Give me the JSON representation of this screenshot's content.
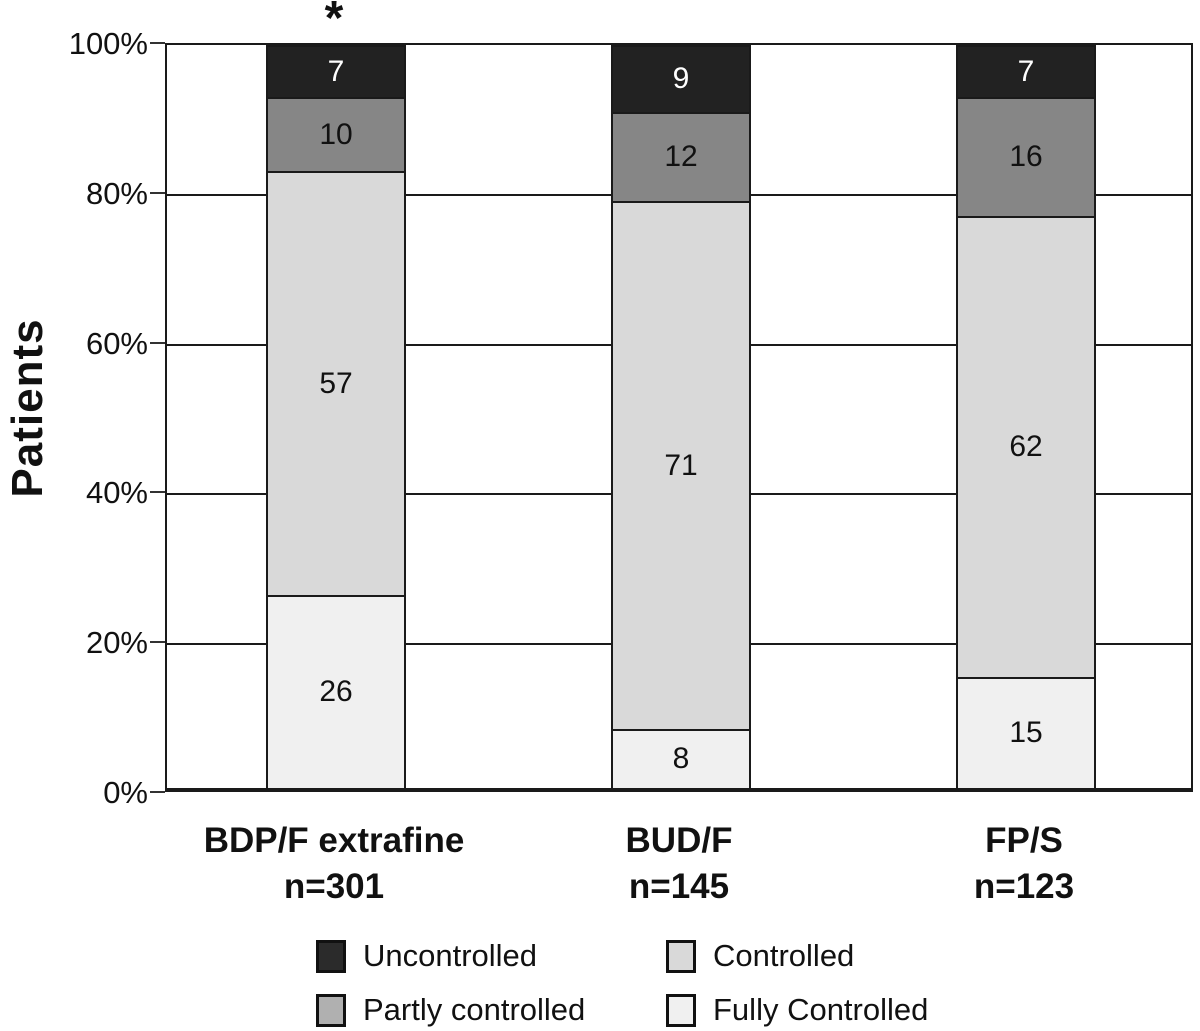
{
  "chart_data": {
    "type": "bar",
    "subtype": "stacked-100-percent",
    "title": "",
    "ylabel": "Patients",
    "xlabel": "",
    "ylim": [
      0,
      100
    ],
    "y_ticks": [
      "0%",
      "20%",
      "40%",
      "60%",
      "80%",
      "100%"
    ],
    "y_tick_values": [
      0,
      20,
      40,
      60,
      80,
      100
    ],
    "grid": "horizontal",
    "categories": [
      {
        "label": "BDP/F extrafine",
        "n_label": "n=301",
        "annotation": "*"
      },
      {
        "label": "BUD/F",
        "n_label": "n=145",
        "annotation": ""
      },
      {
        "label": "FP/S",
        "n_label": "n=123",
        "annotation": ""
      }
    ],
    "series": [
      {
        "name": "Fully Controlled",
        "color": "#f0f0f0",
        "text_color": "#111111",
        "values": [
          26,
          8,
          15
        ]
      },
      {
        "name": "Controlled",
        "color": "#d9d9d9",
        "text_color": "#111111",
        "values": [
          57,
          71,
          62
        ]
      },
      {
        "name": "Partly controlled",
        "color": "#868686",
        "text_color": "#111111",
        "values": [
          10,
          12,
          16
        ]
      },
      {
        "name": "Uncontrolled",
        "color": "#222222",
        "text_color": "#ffffff",
        "values": [
          7,
          9,
          7
        ]
      }
    ],
    "stack_order_note": "bottom-to-top: Fully Controlled, Controlled, Partly controlled, Uncontrolled",
    "legend": {
      "position": "bottom",
      "items": [
        {
          "label": "Uncontrolled",
          "swatch_color": "#2b2b2b"
        },
        {
          "label": "Controlled",
          "swatch_color": "#d9d9d9"
        },
        {
          "label": "Partly controlled",
          "swatch_color": "#b0b0b0"
        },
        {
          "label": "Fully Controlled",
          "swatch_color": "#f0f0f0"
        }
      ]
    },
    "frame_color": "#1a1a1a",
    "background_color": "#ffffff"
  }
}
